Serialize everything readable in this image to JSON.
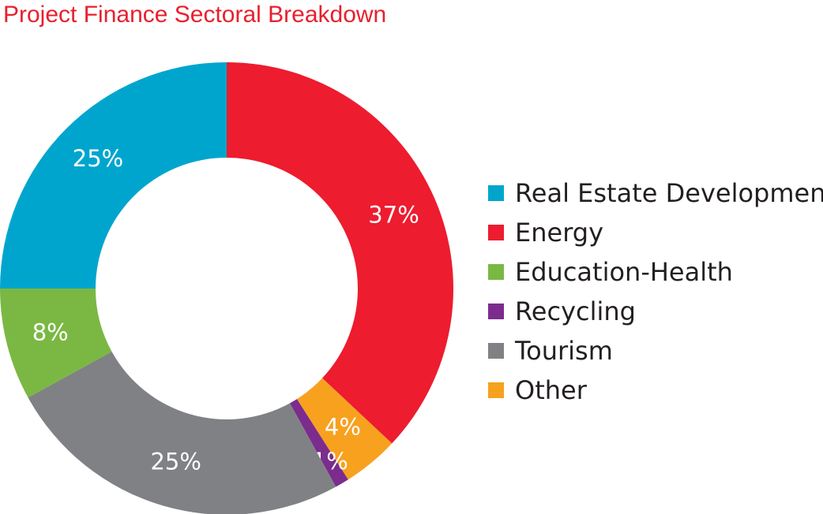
{
  "chart_data": {
    "type": "pie",
    "title": "Project Finance Sectoral Breakdown",
    "slices": [
      {
        "name": "Energy",
        "value": 37,
        "label": "37%",
        "color": "#ed1c2e"
      },
      {
        "name": "Other",
        "value": 4,
        "label": "4%",
        "color": "#f7a11f"
      },
      {
        "name": "Recycling",
        "value": 1,
        "label": "1%",
        "color": "#7b2c8d"
      },
      {
        "name": "Tourism",
        "value": 25,
        "label": "25%",
        "color": "#808184"
      },
      {
        "name": "Education-Health",
        "value": 8,
        "label": "8%",
        "color": "#7ab843"
      },
      {
        "name": "Real Estate Development",
        "value": 25,
        "label": "25%",
        "color": "#00a5ce"
      }
    ],
    "legend": [
      {
        "label": "Real Estate Development",
        "color": "#00a5ce"
      },
      {
        "label": "Energy",
        "color": "#ed1c2e"
      },
      {
        "label": "Education-Health",
        "color": "#7ab843"
      },
      {
        "label": "Recycling",
        "color": "#7b2c8d"
      },
      {
        "label": "Tourism",
        "color": "#808184"
      },
      {
        "label": "Other",
        "color": "#f7a11f"
      }
    ],
    "legend_position": "right",
    "donut": true
  }
}
